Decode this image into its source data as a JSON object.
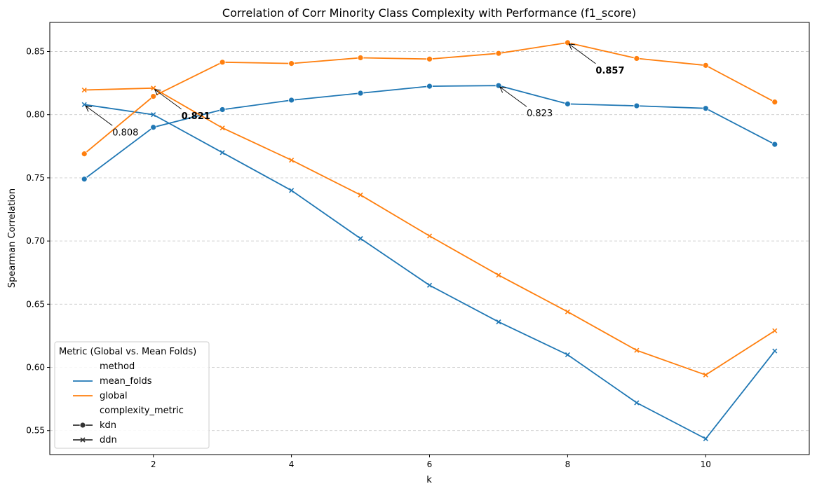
{
  "chart_data": {
    "type": "line",
    "title": "Correlation of Corr Minority Class Complexity with Performance (f1_score)",
    "xlabel": "k",
    "ylabel": "Spearman Correlation",
    "xlim": [
      0.5,
      11.5
    ],
    "ylim": [
      0.531,
      0.873
    ],
    "xticks": [
      2,
      4,
      6,
      8,
      10
    ],
    "yticks": [
      0.55,
      0.6,
      0.65,
      0.7,
      0.75,
      0.8,
      0.85
    ],
    "ytick_labels": [
      "0.55",
      "0.60",
      "0.65",
      "0.70",
      "0.75",
      "0.80",
      "0.85"
    ],
    "grid": "horizontal dashed",
    "x": [
      1,
      2,
      3,
      4,
      5,
      6,
      7,
      8,
      9,
      10,
      11
    ],
    "series": [
      {
        "name": "mean_folds kdn",
        "method": "mean_folds",
        "metric": "kdn",
        "color": "#1f77b4",
        "marker": "circle",
        "values": [
          0.749,
          0.79,
          0.804,
          0.8115,
          0.817,
          0.8225,
          0.823,
          0.8085,
          0.807,
          0.805,
          0.7765
        ]
      },
      {
        "name": "mean_folds ddn",
        "method": "mean_folds",
        "metric": "ddn",
        "color": "#1f77b4",
        "marker": "x",
        "values": [
          0.808,
          0.8,
          0.77,
          0.74,
          0.702,
          0.665,
          0.636,
          0.61,
          0.572,
          0.5435,
          0.613
        ]
      },
      {
        "name": "global kdn",
        "method": "global",
        "metric": "kdn",
        "color": "#ff7f0e",
        "marker": "circle",
        "values": [
          0.769,
          0.8145,
          0.8415,
          0.8405,
          0.845,
          0.844,
          0.8485,
          0.857,
          0.8445,
          0.839,
          0.81
        ]
      },
      {
        "name": "global ddn",
        "method": "global",
        "metric": "ddn",
        "color": "#ff7f0e",
        "marker": "x",
        "values": [
          0.8195,
          0.821,
          0.7895,
          0.764,
          0.7365,
          0.704,
          0.673,
          0.644,
          0.6135,
          0.594,
          0.629
        ]
      }
    ],
    "annotations": [
      {
        "text": "0.808",
        "x": 1,
        "y": 0.808,
        "bold": false
      },
      {
        "text": "0.821",
        "x": 2,
        "y": 0.821,
        "bold": true
      },
      {
        "text": "0.823",
        "x": 7,
        "y": 0.823,
        "bold": false
      },
      {
        "text": "0.857",
        "x": 8,
        "y": 0.857,
        "bold": true
      }
    ],
    "legend": {
      "title": "Metric (Global vs. Mean Folds)",
      "placement": "lower-left",
      "entries": [
        {
          "label": "method",
          "kind": "header"
        },
        {
          "label": "mean_folds",
          "kind": "line",
          "color": "#1f77b4"
        },
        {
          "label": "global",
          "kind": "line",
          "color": "#ff7f0e"
        },
        {
          "label": "complexity_metric",
          "kind": "header"
        },
        {
          "label": "kdn",
          "kind": "marker",
          "marker": "circle",
          "color": "#333333"
        },
        {
          "label": "ddn",
          "kind": "marker",
          "marker": "x",
          "color": "#333333"
        }
      ]
    }
  }
}
